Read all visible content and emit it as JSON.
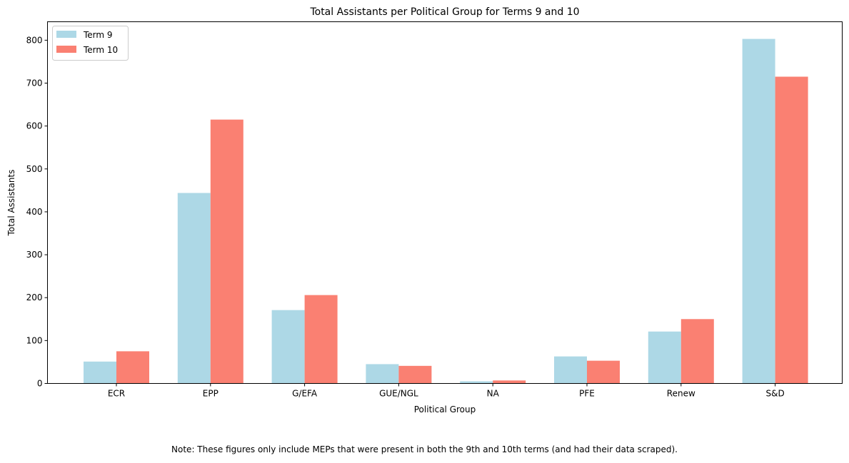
{
  "chart_data": {
    "type": "bar",
    "title": "Total Assistants per Political Group for Terms 9 and 10",
    "xlabel": "Political Group",
    "ylabel": "Total Assistants",
    "categories": [
      "ECR",
      "EPP",
      "G/EFA",
      "GUE/NGL",
      "NA",
      "PFE",
      "Renew",
      "S&D"
    ],
    "series": [
      {
        "name": "Term 9",
        "color": "#add8e6",
        "values": [
          51,
          444,
          171,
          45,
          5,
          63,
          121,
          803
        ]
      },
      {
        "name": "Term 10",
        "color": "#fa8072",
        "values": [
          75,
          615,
          206,
          41,
          7,
          53,
          150,
          715
        ]
      }
    ],
    "yticks": [
      0,
      100,
      200,
      300,
      400,
      500,
      600,
      700,
      800
    ],
    "ylim": [
      0,
      843
    ],
    "grid": false,
    "legend": "top-left"
  },
  "note": "Note: These figures only include MEPs that were present in both the 9th and 10th terms (and had their data scraped)."
}
